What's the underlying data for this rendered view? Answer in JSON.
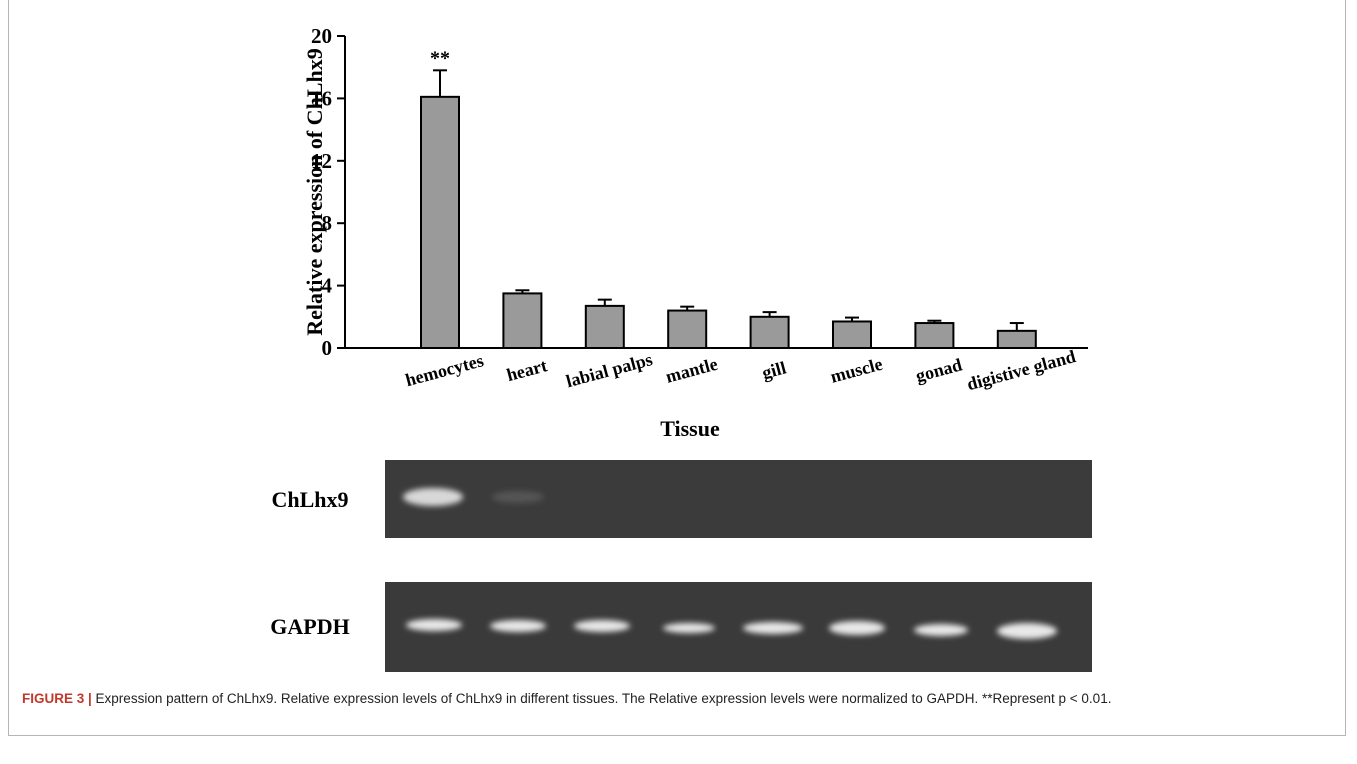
{
  "chart_data": {
    "type": "bar",
    "y_label": "Relative expression  of ChLhx9",
    "x_label": "Tissue",
    "categories": [
      "hemocytes",
      "heart",
      "labial palps",
      "mantle",
      "gill",
      "muscle",
      "gonad",
      "digistive gland"
    ],
    "values": [
      16.1,
      3.5,
      2.7,
      2.4,
      2.0,
      1.7,
      1.6,
      1.1
    ],
    "errors": [
      1.7,
      0.2,
      0.4,
      0.25,
      0.3,
      0.25,
      0.15,
      0.5
    ],
    "color": "#9a9a9a",
    "ylim": [
      0,
      20
    ],
    "yticks": [
      0,
      4,
      8,
      12,
      16,
      20
    ],
    "annotations": [
      {
        "text": "**",
        "x": "hemocytes"
      }
    ]
  },
  "gel": {
    "rows": [
      "ChLhx9",
      "GAPDH"
    ]
  },
  "caption": {
    "label": "FIGURE 3 |",
    "text": " Expression pattern of ChLhx9. Relative expression levels of ChLhx9 in different tissues. The Relative expression levels were normalized to GAPDH. **Represent p < 0.01."
  }
}
